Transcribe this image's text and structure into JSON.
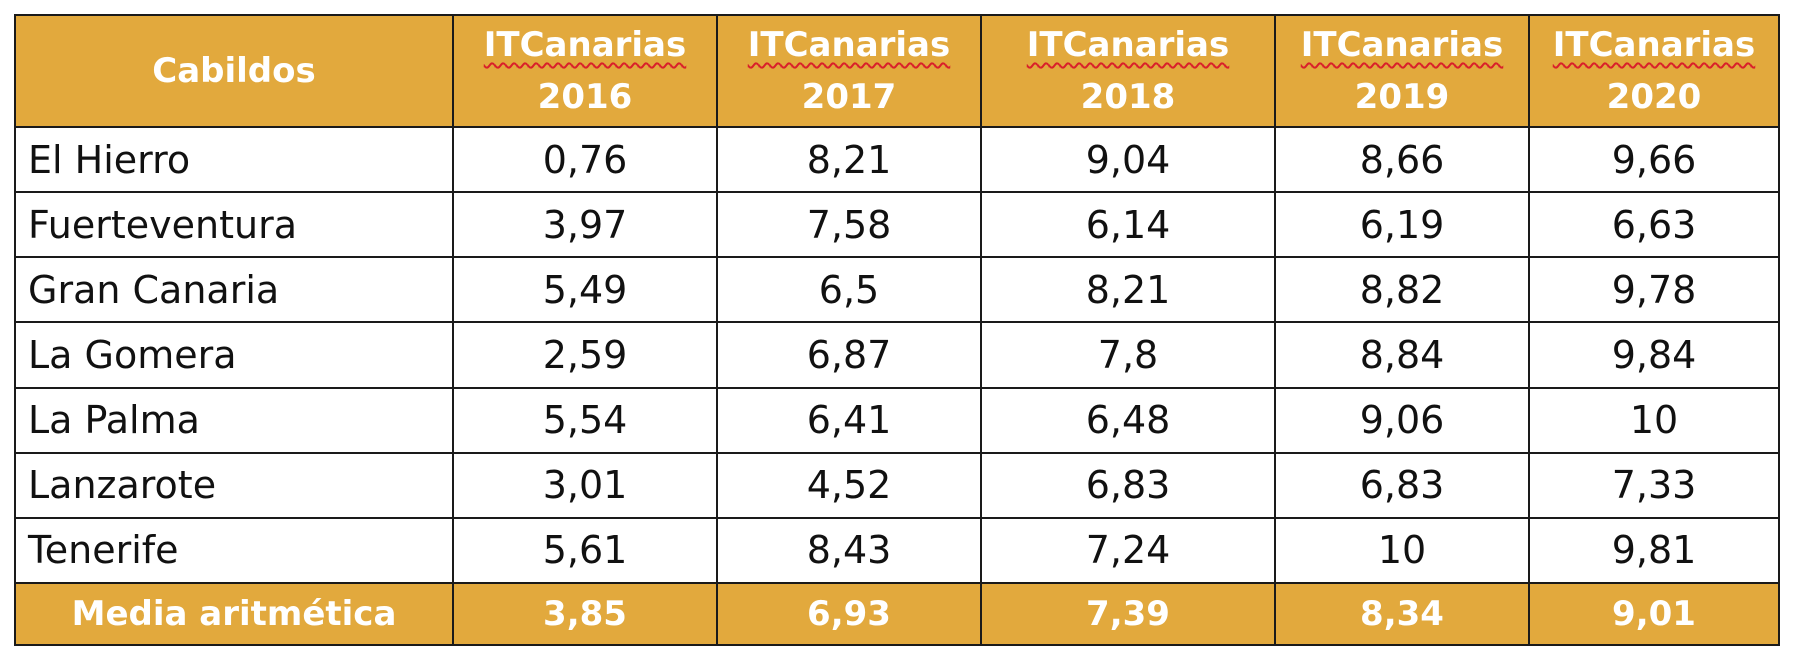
{
  "table": {
    "header": {
      "first": "Cabildos",
      "columns": [
        {
          "name": "ITCanarias",
          "year": "2016"
        },
        {
          "name": "ITCanarias",
          "year": "2017"
        },
        {
          "name": "ITCanarias",
          "year": "2018"
        },
        {
          "name": "ITCanarias",
          "year": "2019"
        },
        {
          "name": "ITCanarias",
          "year": "2020"
        }
      ]
    },
    "rows": [
      {
        "name": "El Hierro",
        "values": [
          "0,76",
          "8,21",
          "9,04",
          "8,66",
          "9,66"
        ]
      },
      {
        "name": "Fuerteventura",
        "values": [
          "3,97",
          "7,58",
          "6,14",
          "6,19",
          "6,63"
        ]
      },
      {
        "name": "Gran Canaria",
        "values": [
          "5,49",
          "6,5",
          "8,21",
          "8,82",
          "9,78"
        ]
      },
      {
        "name": "La Gomera",
        "values": [
          "2,59",
          "6,87",
          "7,8",
          "8,84",
          "9,84"
        ]
      },
      {
        "name": "La Palma",
        "values": [
          "5,54",
          "6,41",
          "6,48",
          "9,06",
          "10"
        ]
      },
      {
        "name": "Lanzarote",
        "values": [
          "3,01",
          "4,52",
          "6,83",
          "6,83",
          "7,33"
        ]
      },
      {
        "name": "Tenerife",
        "values": [
          "5,61",
          "8,43",
          "7,24",
          "10",
          "9,81"
        ]
      }
    ],
    "footer": {
      "label": "Media aritmética",
      "values": [
        "3,85",
        "6,93",
        "7,39",
        "8,34",
        "9,01"
      ]
    }
  },
  "colors": {
    "header_bg": "#e2a93d",
    "header_text": "#ffffff",
    "border": "#1a1a1a"
  }
}
